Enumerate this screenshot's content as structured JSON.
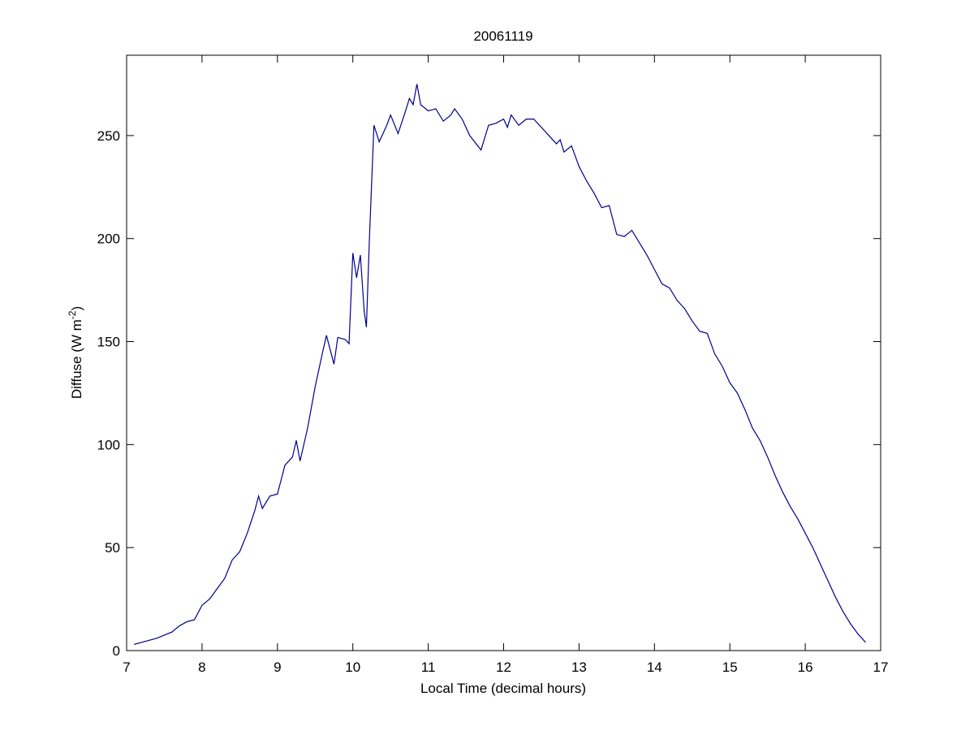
{
  "chart_data": {
    "type": "line",
    "title": "20061119",
    "xlabel": "Local Time (decimal hours)",
    "ylabel": {
      "text": "Diffuse (W m",
      "sup": "-2",
      "end": ")"
    },
    "xlim": [
      7,
      17
    ],
    "xticks": [
      7,
      8,
      9,
      10,
      11,
      12,
      13,
      14,
      15,
      16,
      17
    ],
    "ylim": [
      0,
      289
    ],
    "yticks": [
      0,
      50,
      100,
      150,
      200,
      250
    ],
    "x": [
      7.1,
      7.2,
      7.3,
      7.4,
      7.5,
      7.6,
      7.7,
      7.8,
      7.9,
      8.0,
      8.1,
      8.2,
      8.3,
      8.4,
      8.5,
      8.6,
      8.7,
      8.75,
      8.8,
      8.9,
      9.0,
      9.1,
      9.2,
      9.25,
      9.3,
      9.4,
      9.5,
      9.6,
      9.65,
      9.7,
      9.75,
      9.8,
      9.9,
      9.95,
      10.0,
      10.05,
      10.1,
      10.15,
      10.18,
      10.22,
      10.28,
      10.35,
      10.45,
      10.5,
      10.6,
      10.7,
      10.75,
      10.8,
      10.85,
      10.9,
      11.0,
      11.1,
      11.2,
      11.3,
      11.35,
      11.45,
      11.55,
      11.7,
      11.8,
      11.9,
      12.0,
      12.05,
      12.1,
      12.2,
      12.3,
      12.4,
      12.5,
      12.6,
      12.7,
      12.75,
      12.8,
      12.9,
      13.0,
      13.1,
      13.2,
      13.3,
      13.4,
      13.5,
      13.6,
      13.7,
      13.8,
      13.9,
      14.0,
      14.1,
      14.2,
      14.3,
      14.4,
      14.5,
      14.6,
      14.7,
      14.8,
      14.9,
      15.0,
      15.1,
      15.2,
      15.3,
      15.4,
      15.5,
      15.6,
      15.7,
      15.8,
      15.9,
      16.0,
      16.1,
      16.2,
      16.3,
      16.4,
      16.5,
      16.6,
      16.7,
      16.8
    ],
    "series": [
      {
        "color": "#00008b",
        "values": [
          3,
          4,
          5,
          6,
          7.5,
          9,
          12,
          14,
          15,
          22,
          25,
          30,
          35,
          44,
          48,
          57,
          68,
          75,
          69,
          75,
          76,
          90,
          94,
          102,
          92,
          108,
          128,
          145,
          153,
          146,
          139,
          152,
          151,
          149,
          193,
          181,
          192,
          165,
          157,
          200,
          255,
          247,
          255,
          260,
          251,
          262,
          268,
          265,
          275,
          265,
          262,
          263,
          257,
          260,
          263,
          258,
          250,
          243,
          255,
          256,
          258,
          254,
          260,
          255,
          258,
          258,
          254,
          250,
          246,
          248,
          242,
          245,
          235,
          228,
          222,
          215,
          216,
          202,
          201,
          204,
          198,
          192,
          185,
          178,
          176,
          170,
          166,
          160,
          155,
          154,
          144,
          138,
          130,
          125,
          117,
          108,
          102,
          94,
          85,
          77,
          70,
          64,
          57,
          50,
          42,
          34,
          26,
          19,
          13,
          8,
          4
        ]
      }
    ]
  }
}
